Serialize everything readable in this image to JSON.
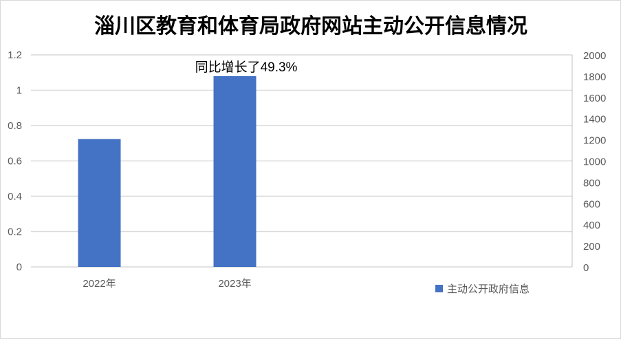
{
  "chart_data": {
    "type": "bar",
    "title": "淄川区教育和体育局政府网站主动公开信息情况",
    "categories": [
      "2022年",
      "2023年"
    ],
    "series": [
      {
        "name": "主动公开政府信息",
        "values": [
          1206,
          1800
        ],
        "axis": "right",
        "color": "#4472C4"
      }
    ],
    "left_axis": {
      "ylim": [
        0,
        1.2
      ],
      "ticks": [
        "0",
        "0.2",
        "0.4",
        "0.6",
        "0.8",
        "1",
        "1.2"
      ]
    },
    "right_axis": {
      "ylim": [
        0,
        2000
      ],
      "ticks": [
        "0",
        "200",
        "400",
        "600",
        "800",
        "1000",
        "1200",
        "1400",
        "1600",
        "1800",
        "2000"
      ]
    },
    "annotation": "同比增长了49.3%",
    "grid": true,
    "legend_position": "bottom-right"
  }
}
